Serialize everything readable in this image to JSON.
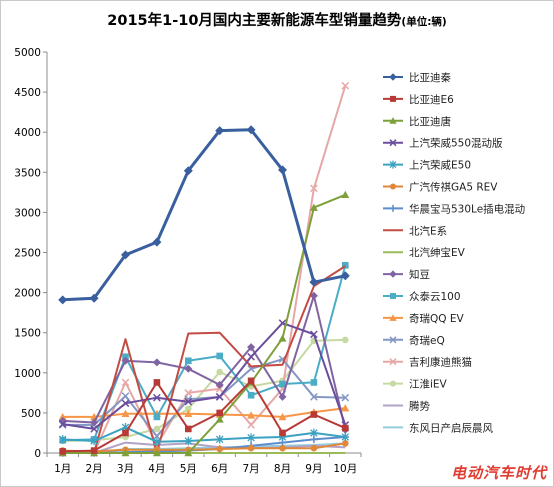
{
  "chart_data": {
    "type": "line",
    "title": "2015年1-10月国内主要新能源车型销量趋势",
    "title_unit": "(单位:辆)",
    "xlabel": "",
    "ylabel": "",
    "ylim": [
      0,
      5000
    ],
    "yticks": [
      "0",
      "500",
      "1000",
      "1500",
      "2000",
      "2500",
      "3000",
      "3500",
      "4000",
      "4500",
      "5000"
    ],
    "categories": [
      "1月",
      "2月",
      "3月",
      "4月",
      "5月",
      "6月",
      "7月",
      "8月",
      "9月",
      "10月"
    ],
    "grid": false,
    "legend_position": "right",
    "series": [
      {
        "name": "比亚迪秦",
        "color": "#3a5f9e",
        "marker": "diamond",
        "values": [
          1910,
          1930,
          2470,
          2630,
          3520,
          4020,
          4030,
          3530,
          2130,
          2210
        ]
      },
      {
        "name": "比亚迪E6",
        "color": "#b83a36",
        "marker": "square",
        "values": [
          20,
          30,
          250,
          880,
          300,
          500,
          900,
          250,
          480,
          310
        ]
      },
      {
        "name": "比亚迪唐",
        "color": "#7ea03a",
        "marker": "triangle",
        "values": [
          0,
          0,
          0,
          0,
          0,
          420,
          880,
          1430,
          3060,
          3220
        ]
      },
      {
        "name": "上汽荣威550混动版",
        "color": "#6a4d9c",
        "marker": "x",
        "values": [
          360,
          300,
          620,
          690,
          640,
          700,
          1200,
          1620,
          1480,
          350
        ]
      },
      {
        "name": "上汽荣威E50",
        "color": "#3ba2c1",
        "marker": "star",
        "values": [
          170,
          150,
          320,
          140,
          150,
          170,
          190,
          200,
          250,
          200
        ]
      },
      {
        "name": "广汽传祺GA5 REV",
        "color": "#e0873a",
        "marker": "circle",
        "values": [
          30,
          20,
          40,
          40,
          40,
          50,
          60,
          60,
          60,
          120
        ]
      },
      {
        "name": "华晨宝马530Le插电混动",
        "color": "#5d8ccd",
        "marker": "plus",
        "values": [
          0,
          0,
          10,
          20,
          30,
          50,
          90,
          130,
          170,
          200
        ]
      },
      {
        "name": "北汽E系",
        "color": "#c44b44",
        "marker": "none",
        "values": [
          0,
          0,
          1420,
          0,
          1490,
          1500,
          1080,
          1100,
          2080,
          2330
        ]
      },
      {
        "name": "北汽绅宝EV",
        "color": "#9bbb59",
        "marker": "none",
        "values": [
          0,
          0,
          0,
          0,
          0,
          0,
          0,
          0,
          0,
          0
        ]
      },
      {
        "name": "知豆",
        "color": "#8064a2",
        "marker": "diamond",
        "values": [
          400,
          380,
          1150,
          1130,
          1050,
          850,
          1320,
          700,
          1960,
          290
        ]
      },
      {
        "name": "众泰云100",
        "color": "#4bacc6",
        "marker": "square",
        "values": [
          160,
          170,
          1200,
          450,
          1150,
          1210,
          720,
          860,
          880,
          2340
        ]
      },
      {
        "name": "奇瑞QQ EV",
        "color": "#f79646",
        "marker": "triangle",
        "values": [
          450,
          450,
          490,
          490,
          490,
          480,
          470,
          450,
          510,
          560
        ]
      },
      {
        "name": "奇瑞eQ",
        "color": "#8497c4",
        "marker": "x",
        "values": [
          350,
          350,
          710,
          210,
          670,
          700,
          1050,
          1170,
          700,
          690
        ]
      },
      {
        "name": "吉利康迪熊猫",
        "color": "#e6a8a6",
        "marker": "x",
        "values": [
          0,
          0,
          880,
          100,
          750,
          800,
          350,
          800,
          3300,
          4580
        ]
      },
      {
        "name": "江淮iEV",
        "color": "#c5d9a0",
        "marker": "circle",
        "values": [
          150,
          160,
          200,
          300,
          550,
          1010,
          830,
          900,
          1400,
          1410
        ]
      },
      {
        "name": "腾势",
        "color": "#b3a2c7",
        "marker": "none",
        "values": [
          0,
          0,
          130,
          100,
          120,
          70,
          60,
          70,
          90,
          70
        ]
      },
      {
        "name": "东风日产启辰晨风",
        "color": "#93cddd",
        "marker": "none",
        "values": [
          0,
          0,
          50,
          50,
          60,
          70,
          80,
          90,
          100,
          120
        ]
      }
    ]
  },
  "watermark": "电动汽车时代"
}
